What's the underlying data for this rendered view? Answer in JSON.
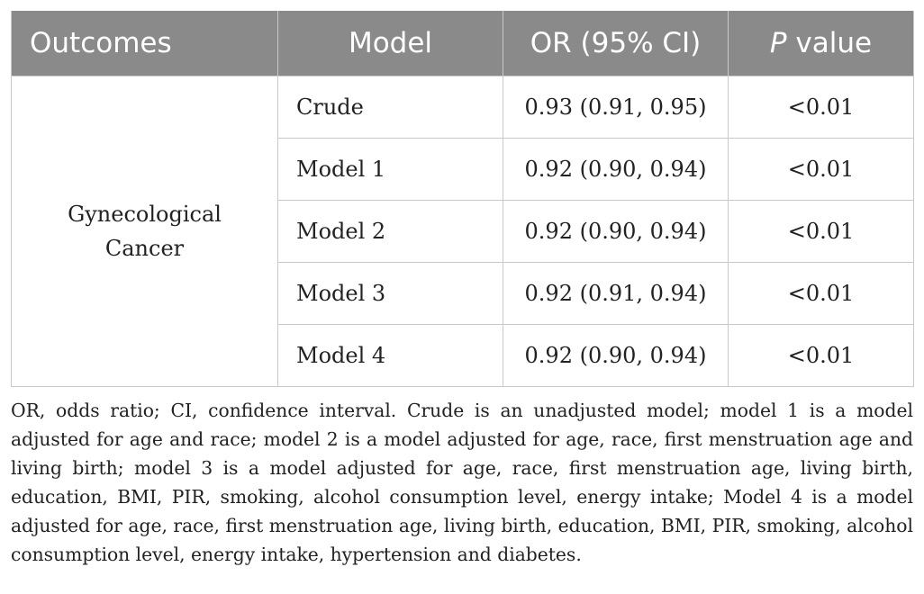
{
  "table": {
    "headers": {
      "outcomes": "Outcomes",
      "model": "Model",
      "or_ci": "OR (95% CI)",
      "p_italic": "P",
      "p_rest": " value"
    },
    "outcome_line1": "Gynecological",
    "outcome_line2": "Cancer",
    "rows": [
      {
        "model": "Crude",
        "or_ci": "0.93 (0.91, 0.95)",
        "p": "<0.01"
      },
      {
        "model": "Model 1",
        "or_ci": "0.92 (0.90, 0.94)",
        "p": "<0.01"
      },
      {
        "model": "Model 2",
        "or_ci": "0.92 (0.90, 0.94)",
        "p": "<0.01"
      },
      {
        "model": "Model 3",
        "or_ci": "0.92 (0.91, 0.94)",
        "p": "<0.01"
      },
      {
        "model": "Model 4",
        "or_ci": "0.92 (0.90, 0.94)",
        "p": "<0.01"
      }
    ]
  },
  "footnote": "OR, odds ratio; CI, confidence interval. Crude is an unadjusted model; model 1 is a model adjusted for age and race; model 2 is a model adjusted for age, race, first menstruation age and living birth; model 3 is a model adjusted for age, race, first menstruation age, living birth, education, BMI, PIR, smoking, alcohol consumption level, energy intake; Model 4 is a model adjusted for age, race, first menstruation age, living birth, education, BMI, PIR, smoking, alcohol consumption level, energy intake, hypertension and diabetes.",
  "colors": {
    "header_bg": "#8a8a8a",
    "header_text": "#ffffff",
    "grid": "#c9c9c9",
    "body_text": "#222222"
  }
}
